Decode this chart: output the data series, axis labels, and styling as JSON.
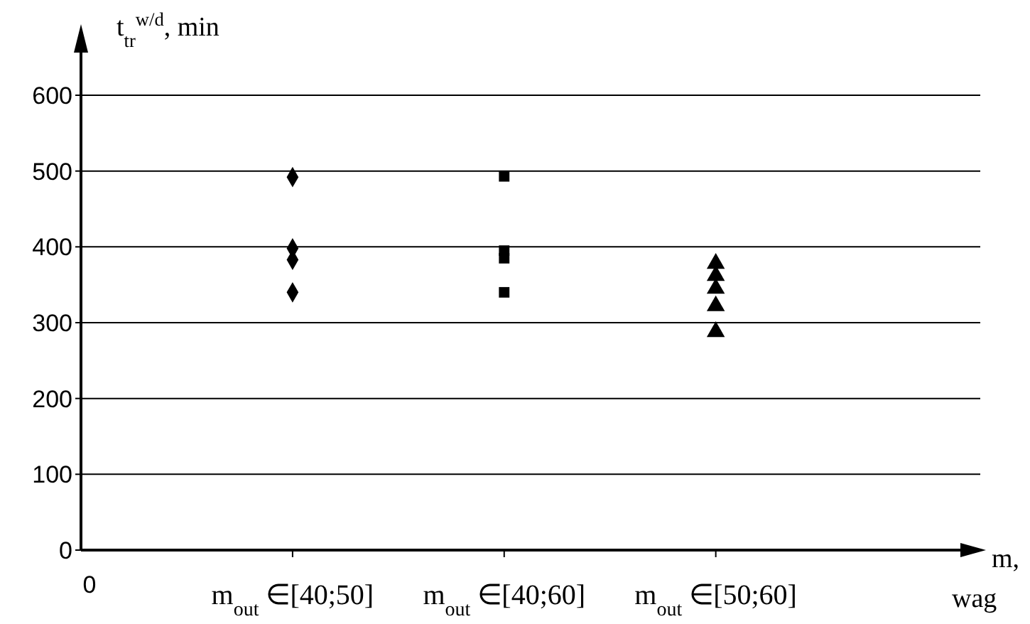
{
  "chart_data": {
    "type": "scatter",
    "ylabel": "t$_{tr}$$^{w/d}$, min",
    "xlabel": "m, wag",
    "categories": [
      "0",
      "m$_{out}$ ∈[40;50]",
      "m$_{out}$ ∈[40;60]",
      "m$_{out}$ ∈[50;60]"
    ],
    "ylim": [
      0,
      600
    ],
    "yticks": [
      0,
      100,
      200,
      300,
      400,
      500,
      600
    ],
    "grid": "y",
    "series": [
      {
        "color": "#000000",
        "marker": "diamond",
        "x": [
          "m$_{out}$ ∈[40;50]",
          "m$_{out}$ ∈[40;50]",
          "m$_{out}$ ∈[40;50]",
          "m$_{out}$ ∈[40;50]"
        ],
        "values": [
          492,
          398,
          383,
          340
        ]
      },
      {
        "color": "#000000",
        "marker": "square",
        "x": [
          "m$_{out}$ ∈[40;60]",
          "m$_{out}$ ∈[40;60]",
          "m$_{out}$ ∈[40;60]",
          "m$_{out}$ ∈[40;60]"
        ],
        "values": [
          493,
          395,
          385,
          340
        ]
      },
      {
        "color": "#000000",
        "marker": "triangle",
        "x": [
          "m$_{out}$ ∈[50;60]",
          "m$_{out}$ ∈[50;60]",
          "m$_{out}$ ∈[50;60]",
          "m$_{out}$ ∈[50;60]",
          "m$_{out}$ ∈[50;60]"
        ],
        "values": [
          378,
          362,
          345,
          322,
          288
        ]
      }
    ]
  }
}
